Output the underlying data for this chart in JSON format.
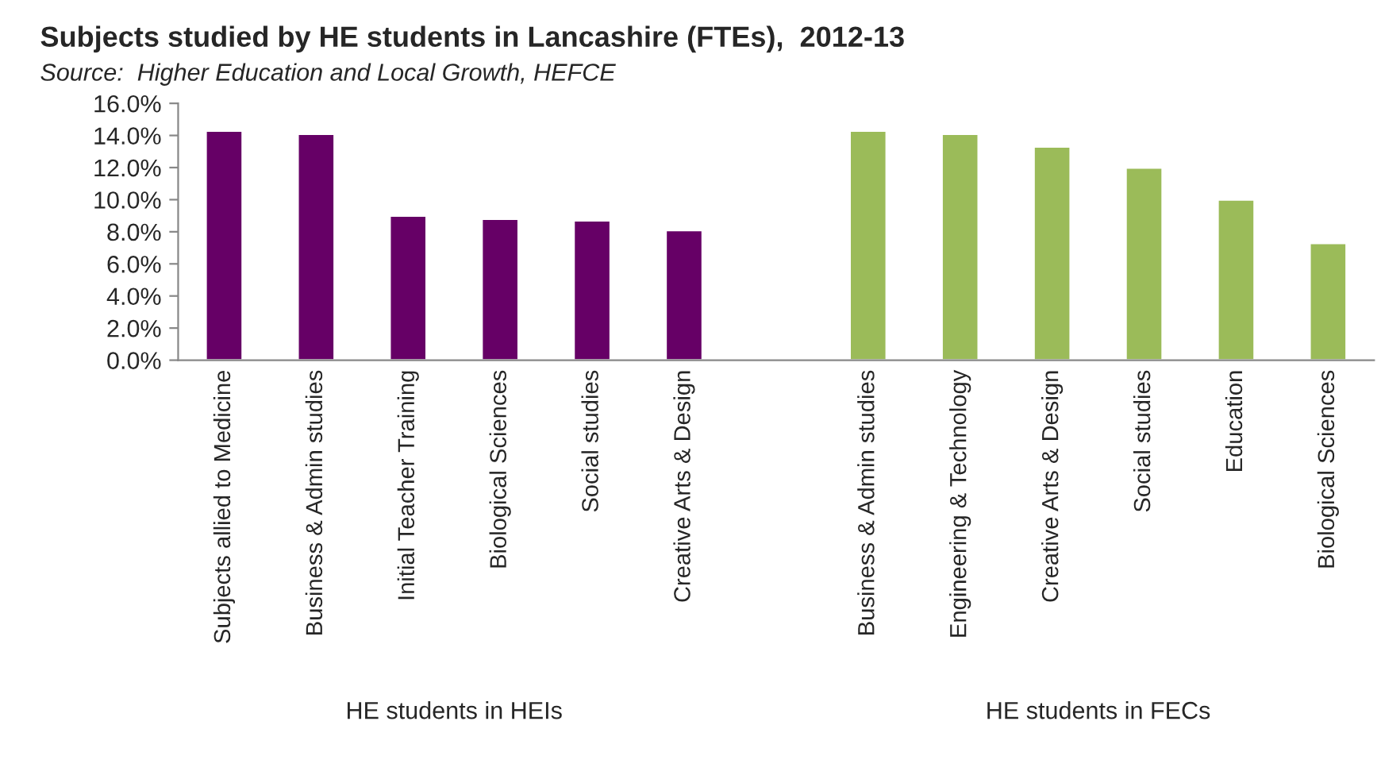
{
  "chart_data": {
    "type": "bar",
    "title": "Subjects studied by HE students in Lancashire (FTEs),  2012-13",
    "subtitle": "Source:  Higher Education and Local Growth, HEFCE",
    "categories": [
      "Subjects allied to Medicine",
      "Business & Admin studies",
      "Initial Teacher Training",
      "Biological Sciences",
      "Social studies",
      "Creative Arts & Design",
      null,
      "Business & Admin studies",
      "Engineering & Technology",
      "Creative Arts & Design",
      "Social studies",
      "Education",
      "Biological Sciences"
    ],
    "values": [
      14.3,
      14.1,
      9.0,
      8.8,
      8.7,
      8.1,
      null,
      14.3,
      14.1,
      13.3,
      12.0,
      10.0,
      7.3
    ],
    "colors": [
      "#660066",
      "#660066",
      "#660066",
      "#660066",
      "#660066",
      "#660066",
      "#ffffff",
      "#9bbb59",
      "#9bbb59",
      "#9bbb59",
      "#9bbb59",
      "#9bbb59",
      "#9bbb59"
    ],
    "ylim": [
      0,
      16
    ],
    "yticks": [
      {
        "value": 0,
        "label": "0.0%"
      },
      {
        "value": 2,
        "label": "2.0%"
      },
      {
        "value": 4,
        "label": "4.0%"
      },
      {
        "value": 6,
        "label": "6.0%"
      },
      {
        "value": 8,
        "label": "8.0%"
      },
      {
        "value": 10,
        "label": "10.0%"
      },
      {
        "value": 12,
        "label": "12.0%"
      },
      {
        "value": 14,
        "label": "14.0%"
      },
      {
        "value": 16,
        "label": "16.0%"
      }
    ],
    "annotations": [
      "HE students in HEIs",
      "HE students in FECs"
    ]
  }
}
